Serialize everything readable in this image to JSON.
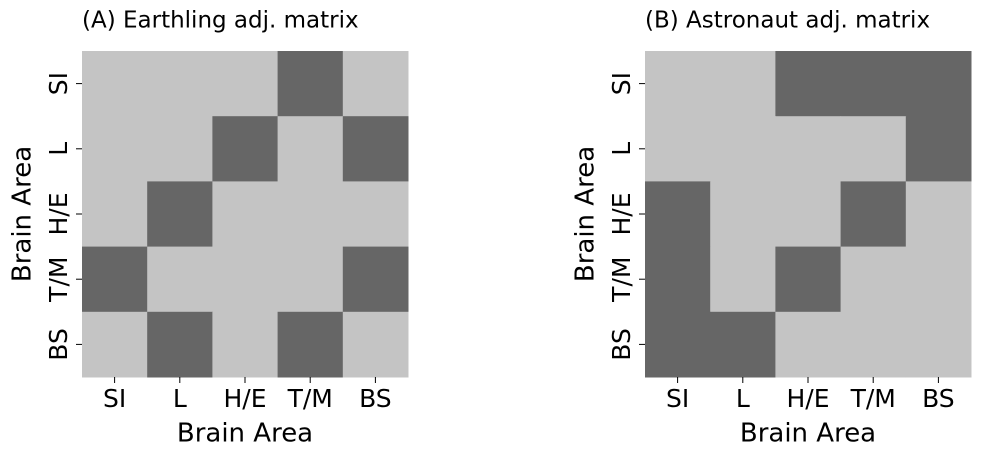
{
  "chart_data": [
    {
      "type": "heatmap",
      "title": "(A) Earthling adj. matrix",
      "x_label": "Brain Area",
      "y_label": "Brain Area",
      "categories": [
        "SI",
        "L",
        "H/E",
        "T/M",
        "BS"
      ],
      "values": [
        [
          0,
          0,
          0,
          1,
          0
        ],
        [
          0,
          0,
          1,
          0,
          1
        ],
        [
          0,
          1,
          0,
          0,
          0
        ],
        [
          1,
          0,
          0,
          0,
          1
        ],
        [
          0,
          1,
          0,
          1,
          0
        ]
      ],
      "colors": [
        "#c4c4c4",
        "#666666"
      ]
    },
    {
      "type": "heatmap",
      "title": "(B) Astronaut adj. matrix",
      "x_label": "Brain Area",
      "y_label": "Brain Area",
      "categories": [
        "SI",
        "L",
        "H/E",
        "T/M",
        "BS"
      ],
      "values": [
        [
          0,
          0,
          1,
          1,
          1
        ],
        [
          0,
          0,
          0,
          0,
          1
        ],
        [
          1,
          0,
          0,
          1,
          0
        ],
        [
          1,
          0,
          1,
          0,
          0
        ],
        [
          1,
          1,
          0,
          0,
          0
        ]
      ],
      "colors": [
        "#c4c4c4",
        "#666666"
      ]
    }
  ]
}
